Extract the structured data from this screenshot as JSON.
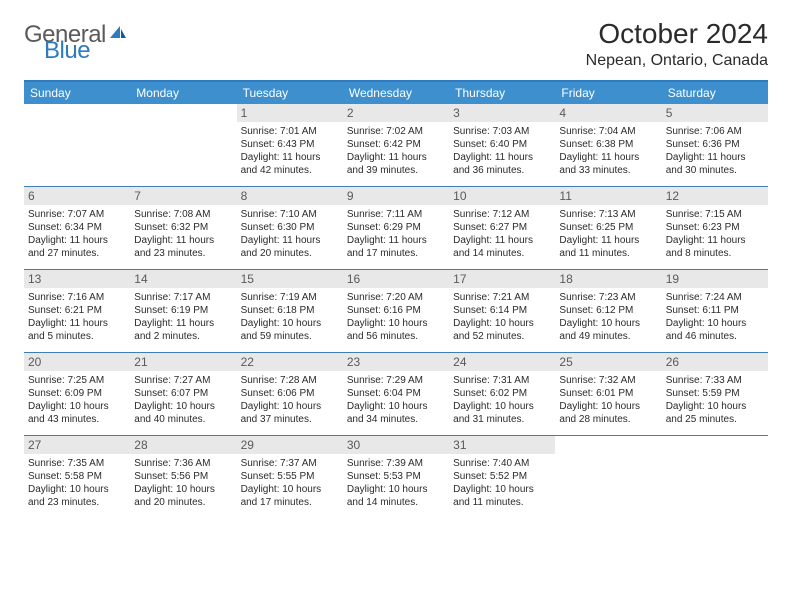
{
  "logo": {
    "text1": "General",
    "text2": "Blue"
  },
  "header": {
    "month_title": "October 2024",
    "location": "Nepean, Ontario, Canada"
  },
  "colors": {
    "header_bar": "#3d8fce",
    "accent_border": "#2e7bc0",
    "week_divider": "#3d7db8",
    "daynum_bg": "#e8e8e8",
    "text": "#2b2b2b",
    "muted": "#5a5a5a"
  },
  "weekdays": [
    "Sunday",
    "Monday",
    "Tuesday",
    "Wednesday",
    "Thursday",
    "Friday",
    "Saturday"
  ],
  "weeks": [
    [
      {
        "empty": true
      },
      {
        "empty": true
      },
      {
        "n": "1",
        "sunrise": "7:01 AM",
        "sunset": "6:43 PM",
        "daylight": "11 hours and 42 minutes."
      },
      {
        "n": "2",
        "sunrise": "7:02 AM",
        "sunset": "6:42 PM",
        "daylight": "11 hours and 39 minutes."
      },
      {
        "n": "3",
        "sunrise": "7:03 AM",
        "sunset": "6:40 PM",
        "daylight": "11 hours and 36 minutes."
      },
      {
        "n": "4",
        "sunrise": "7:04 AM",
        "sunset": "6:38 PM",
        "daylight": "11 hours and 33 minutes."
      },
      {
        "n": "5",
        "sunrise": "7:06 AM",
        "sunset": "6:36 PM",
        "daylight": "11 hours and 30 minutes."
      }
    ],
    [
      {
        "n": "6",
        "sunrise": "7:07 AM",
        "sunset": "6:34 PM",
        "daylight": "11 hours and 27 minutes."
      },
      {
        "n": "7",
        "sunrise": "7:08 AM",
        "sunset": "6:32 PM",
        "daylight": "11 hours and 23 minutes."
      },
      {
        "n": "8",
        "sunrise": "7:10 AM",
        "sunset": "6:30 PM",
        "daylight": "11 hours and 20 minutes."
      },
      {
        "n": "9",
        "sunrise": "7:11 AM",
        "sunset": "6:29 PM",
        "daylight": "11 hours and 17 minutes."
      },
      {
        "n": "10",
        "sunrise": "7:12 AM",
        "sunset": "6:27 PM",
        "daylight": "11 hours and 14 minutes."
      },
      {
        "n": "11",
        "sunrise": "7:13 AM",
        "sunset": "6:25 PM",
        "daylight": "11 hours and 11 minutes."
      },
      {
        "n": "12",
        "sunrise": "7:15 AM",
        "sunset": "6:23 PM",
        "daylight": "11 hours and 8 minutes."
      }
    ],
    [
      {
        "n": "13",
        "sunrise": "7:16 AM",
        "sunset": "6:21 PM",
        "daylight": "11 hours and 5 minutes."
      },
      {
        "n": "14",
        "sunrise": "7:17 AM",
        "sunset": "6:19 PM",
        "daylight": "11 hours and 2 minutes."
      },
      {
        "n": "15",
        "sunrise": "7:19 AM",
        "sunset": "6:18 PM",
        "daylight": "10 hours and 59 minutes."
      },
      {
        "n": "16",
        "sunrise": "7:20 AM",
        "sunset": "6:16 PM",
        "daylight": "10 hours and 56 minutes."
      },
      {
        "n": "17",
        "sunrise": "7:21 AM",
        "sunset": "6:14 PM",
        "daylight": "10 hours and 52 minutes."
      },
      {
        "n": "18",
        "sunrise": "7:23 AM",
        "sunset": "6:12 PM",
        "daylight": "10 hours and 49 minutes."
      },
      {
        "n": "19",
        "sunrise": "7:24 AM",
        "sunset": "6:11 PM",
        "daylight": "10 hours and 46 minutes."
      }
    ],
    [
      {
        "n": "20",
        "sunrise": "7:25 AM",
        "sunset": "6:09 PM",
        "daylight": "10 hours and 43 minutes."
      },
      {
        "n": "21",
        "sunrise": "7:27 AM",
        "sunset": "6:07 PM",
        "daylight": "10 hours and 40 minutes."
      },
      {
        "n": "22",
        "sunrise": "7:28 AM",
        "sunset": "6:06 PM",
        "daylight": "10 hours and 37 minutes."
      },
      {
        "n": "23",
        "sunrise": "7:29 AM",
        "sunset": "6:04 PM",
        "daylight": "10 hours and 34 minutes."
      },
      {
        "n": "24",
        "sunrise": "7:31 AM",
        "sunset": "6:02 PM",
        "daylight": "10 hours and 31 minutes."
      },
      {
        "n": "25",
        "sunrise": "7:32 AM",
        "sunset": "6:01 PM",
        "daylight": "10 hours and 28 minutes."
      },
      {
        "n": "26",
        "sunrise": "7:33 AM",
        "sunset": "5:59 PM",
        "daylight": "10 hours and 25 minutes."
      }
    ],
    [
      {
        "n": "27",
        "sunrise": "7:35 AM",
        "sunset": "5:58 PM",
        "daylight": "10 hours and 23 minutes."
      },
      {
        "n": "28",
        "sunrise": "7:36 AM",
        "sunset": "5:56 PM",
        "daylight": "10 hours and 20 minutes."
      },
      {
        "n": "29",
        "sunrise": "7:37 AM",
        "sunset": "5:55 PM",
        "daylight": "10 hours and 17 minutes."
      },
      {
        "n": "30",
        "sunrise": "7:39 AM",
        "sunset": "5:53 PM",
        "daylight": "10 hours and 14 minutes."
      },
      {
        "n": "31",
        "sunrise": "7:40 AM",
        "sunset": "5:52 PM",
        "daylight": "10 hours and 11 minutes."
      },
      {
        "empty": true
      },
      {
        "empty": true
      }
    ]
  ],
  "labels": {
    "sunrise_prefix": "Sunrise: ",
    "sunset_prefix": "Sunset: ",
    "daylight_prefix": "Daylight: "
  }
}
